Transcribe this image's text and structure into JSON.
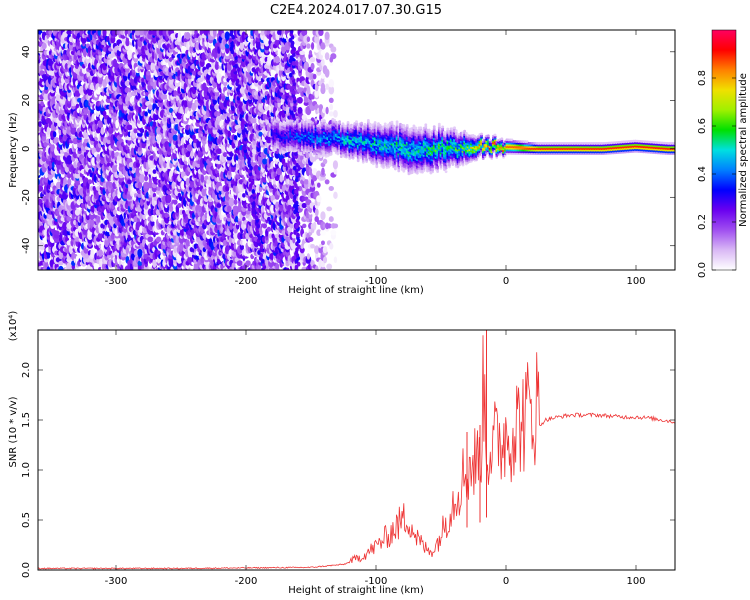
{
  "title": "C2E4.2024.017.07.30.G15",
  "chart_data": [
    {
      "type": "heatmap",
      "xlabel": "Height of straight line (km)",
      "ylabel": "Frequency (Hz)",
      "xlim": [
        -360,
        130
      ],
      "ylim": [
        -50,
        49
      ],
      "x_ticks": [
        -300,
        -200,
        -100,
        0,
        100
      ],
      "y_ticks": [
        -40,
        -20,
        0,
        20,
        40
      ],
      "colorbar": {
        "label": "Normalized spectral amplitude",
        "range": [
          0.0,
          1.0
        ],
        "ticks": [
          "0.0",
          "0.2",
          "0.4",
          "0.6",
          "0.8"
        ],
        "stops": [
          "#ffffff",
          "#d9b8f5",
          "#a04ff0",
          "#6a00f0",
          "#0000ff",
          "#0080ff",
          "#00e0e0",
          "#00e000",
          "#a0f000",
          "#f0e000",
          "#ff8000",
          "#ff0000",
          "#ff0060"
        ]
      },
      "noise_region_km": [
        -360,
        -130
      ],
      "signal_region_km": [
        -180,
        130
      ],
      "signal_track": {
        "x": [
          -175,
          -150,
          -125,
          -100,
          -75,
          -50,
          -35,
          -20,
          0,
          25,
          50,
          75,
          100,
          125
        ],
        "freq_center": [
          6,
          5,
          4,
          2,
          0,
          0,
          0,
          1,
          1,
          0,
          0,
          0,
          1,
          0
        ],
        "half_width": [
          5,
          5,
          5,
          6,
          7,
          6,
          5,
          3,
          2,
          1.5,
          1.5,
          1.5,
          1.5,
          1.5
        ],
        "amplitude": [
          0.3,
          0.4,
          0.45,
          0.5,
          0.5,
          0.55,
          0.55,
          0.75,
          0.85,
          0.9,
          0.9,
          0.9,
          0.9,
          0.9
        ]
      },
      "streaks": [
        {
          "x_at_top": -212,
          "x_at_bottom": -187
        },
        {
          "x_at_top": -165,
          "x_at_bottom": -160
        }
      ]
    },
    {
      "type": "line",
      "xlabel": "Height of straight line (km)",
      "ylabel": "SNR (10 * v/v)",
      "y_scale_note": "(x10⁴)",
      "xlim": [
        -360,
        130
      ],
      "ylim": [
        0,
        2.4
      ],
      "x_ticks": [
        -300,
        -200,
        -100,
        0,
        100
      ],
      "y_ticks": [
        "0.0",
        "0.5",
        "1.0",
        "1.5",
        "2.0"
      ],
      "series": [
        {
          "color": "#ee3333",
          "x": [
            -360,
            -300,
            -250,
            -200,
            -150,
            -125,
            -110,
            -100,
            -90,
            -80,
            -75,
            -70,
            -65,
            -60,
            -55,
            -50,
            -45,
            -40,
            -35,
            -30,
            -25,
            -20,
            -17,
            -15,
            -10,
            -5,
            0,
            5,
            10,
            15,
            20,
            25,
            30,
            40,
            50,
            60,
            70,
            80,
            90,
            100,
            110,
            120,
            130
          ],
          "values": [
            0.01,
            0.01,
            0.01,
            0.015,
            0.02,
            0.05,
            0.12,
            0.2,
            0.3,
            0.42,
            0.45,
            0.3,
            0.22,
            0.16,
            0.18,
            0.3,
            0.45,
            0.6,
            0.75,
            0.85,
            0.9,
            0.95,
            1.6,
            1.05,
            1.05,
            1.1,
            1.15,
            1.2,
            1.25,
            1.3,
            1.36,
            1.43,
            1.5,
            1.53,
            1.55,
            1.55,
            1.55,
            1.54,
            1.53,
            1.53,
            1.52,
            1.5,
            1.48
          ],
          "spikes": [
            {
              "x": -15,
              "y": 2.4
            },
            {
              "x": -30,
              "y": 1.38
            },
            {
              "x": -20,
              "y": 1.45
            }
          ]
        }
      ]
    }
  ]
}
